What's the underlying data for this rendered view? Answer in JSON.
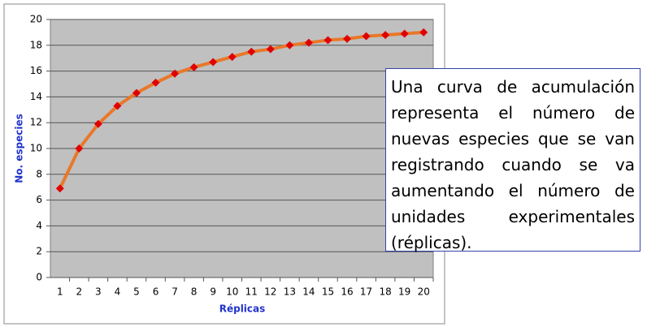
{
  "chart_data": {
    "type": "line",
    "x_label": "Réplicas",
    "y_label": "No. especies",
    "categories": [
      "1",
      "2",
      "3",
      "4",
      "5",
      "6",
      "7",
      "8",
      "9",
      "10",
      "11",
      "12",
      "13",
      "14",
      "15",
      "16",
      "17",
      "18",
      "19",
      "20"
    ],
    "series": [
      {
        "name": "No. especies",
        "color": "#e8782a",
        "marker_color": "#e00000",
        "values": [
          6.9,
          10.0,
          11.9,
          13.3,
          14.3,
          15.1,
          15.8,
          16.3,
          16.7,
          17.1,
          17.5,
          17.7,
          18.0,
          18.2,
          18.4,
          18.5,
          18.7,
          18.8,
          18.9,
          19.0
        ]
      }
    ],
    "ylim": [
      0,
      20
    ],
    "yticks": [
      0,
      2,
      4,
      6,
      8,
      10,
      12,
      14,
      16,
      18,
      20
    ],
    "grid": true
  },
  "text_box": {
    "text": "Una curva de acumulación representa el número de nuevas especies que se van registrando cuando se va aumentando el número de unidades experimentales (réplicas)."
  }
}
